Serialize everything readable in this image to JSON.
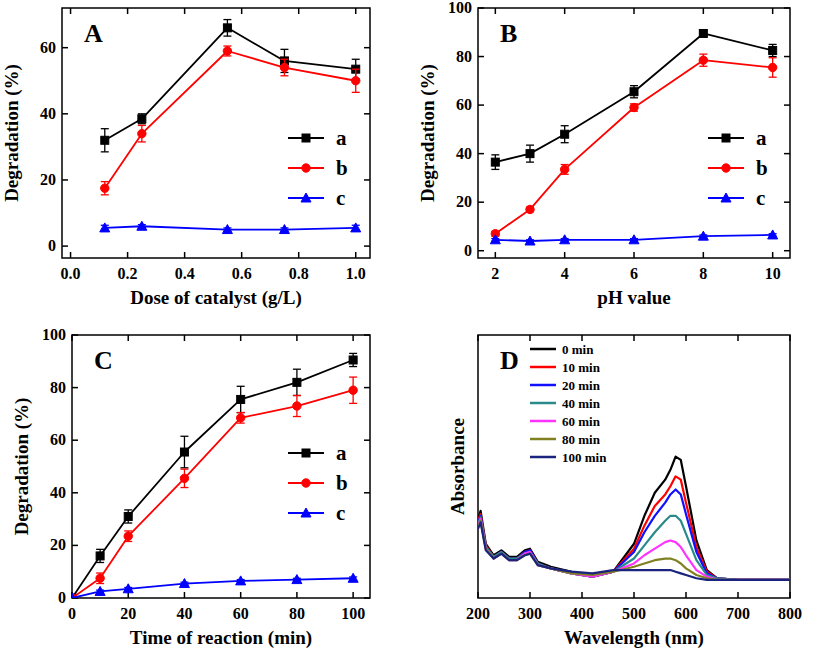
{
  "chart_data": [
    {
      "type": "line",
      "title": "A",
      "x_label": "Dose of catalyst (g/L)",
      "y_label": "Degradation (%)",
      "x": [
        0.12,
        0.25,
        0.55,
        0.75,
        1.0
      ],
      "xlim": [
        -0.03,
        1.05
      ],
      "ylim": [
        -3.6,
        72
      ],
      "xticks": [
        {
          "value": 0,
          "label": "0.0"
        },
        0.2,
        0.4,
        0.6,
        0.8,
        {
          "value": 1,
          "label": "1.0"
        }
      ],
      "yticks": [
        0,
        20,
        40,
        60
      ],
      "legend": "right",
      "series": [
        {
          "name": "a",
          "color": "#000000",
          "marker": "square",
          "values": [
            32,
            38.5,
            66,
            56,
            53.5
          ],
          "errors": [
            3.5,
            1.5,
            2.5,
            3.5,
            3
          ]
        },
        {
          "name": "b",
          "color": "#ff0000",
          "marker": "circle",
          "values": [
            17.5,
            34,
            59,
            54,
            50
          ],
          "errors": [
            2,
            2.5,
            1.5,
            2.5,
            3.5
          ]
        },
        {
          "name": "c",
          "color": "#0000ff",
          "marker": "triangle",
          "values": [
            5.5,
            6,
            5,
            5,
            5.5
          ],
          "errors": [
            0.8,
            0.5,
            0.5,
            0.5,
            0.8
          ]
        }
      ]
    },
    {
      "type": "line",
      "title": "B",
      "x_label": "pH value",
      "y_label": "Degradation (%)",
      "x": [
        2,
        3,
        4,
        6,
        8,
        10
      ],
      "xlim": [
        1.5,
        10.5
      ],
      "ylim": [
        -3,
        100
      ],
      "xticks": [
        2,
        4,
        6,
        8,
        10
      ],
      "yticks": [
        0,
        20,
        40,
        60,
        80,
        100
      ],
      "legend": "right",
      "series": [
        {
          "name": "a",
          "color": "#000000",
          "marker": "square",
          "values": [
            36.5,
            40,
            48,
            65.5,
            89.5,
            82.5
          ],
          "errors": [
            3,
            3.5,
            3.5,
            2.5,
            1,
            2.5
          ]
        },
        {
          "name": "b",
          "color": "#ff0000",
          "marker": "circle",
          "values": [
            7,
            17,
            33.5,
            59,
            78.5,
            75.5
          ],
          "errors": [
            1,
            1,
            2,
            1.5,
            2.5,
            4
          ]
        },
        {
          "name": "c",
          "color": "#0000ff",
          "marker": "triangle",
          "values": [
            4.5,
            4,
            4.5,
            4.5,
            6,
            6.5
          ],
          "errors": [
            0.5,
            0.5,
            0.5,
            0.5,
            0.5,
            0.5
          ]
        }
      ]
    },
    {
      "type": "line",
      "title": "C",
      "x_label": "Time of reaction (min)",
      "y_label": "Degradation (%)",
      "x": [
        0,
        10,
        20,
        40,
        60,
        80,
        100
      ],
      "xlim": [
        0,
        106
      ],
      "ylim": [
        0,
        100
      ],
      "xticks": [
        0,
        20,
        40,
        60,
        80,
        100
      ],
      "yticks": [
        0,
        20,
        40,
        60,
        80,
        100
      ],
      "legend": "lower right",
      "series": [
        {
          "name": "a",
          "color": "#000000",
          "marker": "square",
          "values": [
            0,
            16,
            31,
            55.5,
            75.5,
            82,
            90.5
          ],
          "errors": [
            0,
            2.5,
            2.5,
            6,
            5,
            5,
            2.5
          ]
        },
        {
          "name": "b",
          "color": "#ff0000",
          "marker": "circle",
          "values": [
            0,
            7.5,
            23.5,
            45.5,
            68.5,
            73,
            79
          ],
          "errors": [
            0,
            2,
            2,
            3.5,
            2,
            4,
            5
          ]
        },
        {
          "name": "c",
          "color": "#0000ff",
          "marker": "triangle",
          "values": [
            0,
            2.5,
            3.5,
            5.5,
            6.5,
            7,
            7.5
          ],
          "errors": [
            0,
            0.5,
            0.5,
            0.5,
            0.5,
            0.5,
            0.5
          ]
        }
      ]
    },
    {
      "type": "line",
      "title": "D",
      "x_label": "Wavelength (nm)",
      "y_label": "Absorbance",
      "x": [
        200,
        205,
        215,
        230,
        245,
        260,
        275,
        290,
        300,
        315,
        340,
        380,
        420,
        460,
        500,
        520,
        540,
        560,
        570,
        580,
        590,
        600,
        620,
        640,
        660,
        700,
        800
      ],
      "xlim": [
        200,
        800
      ],
      "ylim": [
        0,
        1.6
      ],
      "xticks": [
        200,
        300,
        400,
        500,
        600,
        700,
        800
      ],
      "tick_labels": "x",
      "legend": "upper left",
      "series": [
        {
          "name": "0 min",
          "color": "#000000",
          "values": [
            0.48,
            0.53,
            0.33,
            0.26,
            0.29,
            0.25,
            0.25,
            0.29,
            0.3,
            0.22,
            0.19,
            0.16,
            0.13,
            0.16,
            0.33,
            0.5,
            0.64,
            0.72,
            0.78,
            0.86,
            0.84,
            0.68,
            0.35,
            0.17,
            0.12,
            0.11,
            0.11
          ]
        },
        {
          "name": "10 min",
          "color": "#ff0000",
          "values": [
            0.47,
            0.51,
            0.32,
            0.25,
            0.28,
            0.24,
            0.24,
            0.28,
            0.29,
            0.21,
            0.18,
            0.15,
            0.13,
            0.16,
            0.3,
            0.44,
            0.56,
            0.63,
            0.68,
            0.74,
            0.72,
            0.58,
            0.31,
            0.16,
            0.12,
            0.11,
            0.11
          ]
        },
        {
          "name": "20 min",
          "color": "#1010ff",
          "values": [
            0.46,
            0.5,
            0.31,
            0.25,
            0.28,
            0.24,
            0.24,
            0.28,
            0.29,
            0.21,
            0.18,
            0.15,
            0.13,
            0.16,
            0.28,
            0.4,
            0.5,
            0.58,
            0.63,
            0.66,
            0.63,
            0.51,
            0.28,
            0.15,
            0.12,
            0.11,
            0.11
          ]
        },
        {
          "name": "40 min",
          "color": "#2a8a8a",
          "values": [
            0.45,
            0.49,
            0.31,
            0.25,
            0.28,
            0.24,
            0.24,
            0.27,
            0.28,
            0.21,
            0.18,
            0.15,
            0.13,
            0.16,
            0.24,
            0.32,
            0.4,
            0.47,
            0.5,
            0.5,
            0.47,
            0.39,
            0.23,
            0.14,
            0.12,
            0.11,
            0.11
          ]
        },
        {
          "name": "60 min",
          "color": "#ff33ff",
          "values": [
            0.44,
            0.48,
            0.3,
            0.24,
            0.27,
            0.23,
            0.23,
            0.27,
            0.28,
            0.2,
            0.18,
            0.15,
            0.13,
            0.16,
            0.21,
            0.26,
            0.3,
            0.34,
            0.35,
            0.34,
            0.31,
            0.26,
            0.17,
            0.13,
            0.11,
            0.11,
            0.11
          ]
        },
        {
          "name": "80 min",
          "color": "#808020",
          "values": [
            0.43,
            0.47,
            0.3,
            0.24,
            0.27,
            0.23,
            0.23,
            0.26,
            0.27,
            0.2,
            0.18,
            0.15,
            0.14,
            0.16,
            0.19,
            0.21,
            0.23,
            0.24,
            0.24,
            0.23,
            0.21,
            0.18,
            0.14,
            0.12,
            0.11,
            0.11,
            0.11
          ]
        },
        {
          "name": "100 min",
          "color": "#1a237e",
          "values": [
            0.42,
            0.46,
            0.29,
            0.24,
            0.27,
            0.23,
            0.23,
            0.26,
            0.27,
            0.2,
            0.18,
            0.16,
            0.15,
            0.17,
            0.17,
            0.17,
            0.17,
            0.17,
            0.17,
            0.16,
            0.15,
            0.14,
            0.12,
            0.11,
            0.11,
            0.11,
            0.11
          ]
        }
      ]
    }
  ]
}
